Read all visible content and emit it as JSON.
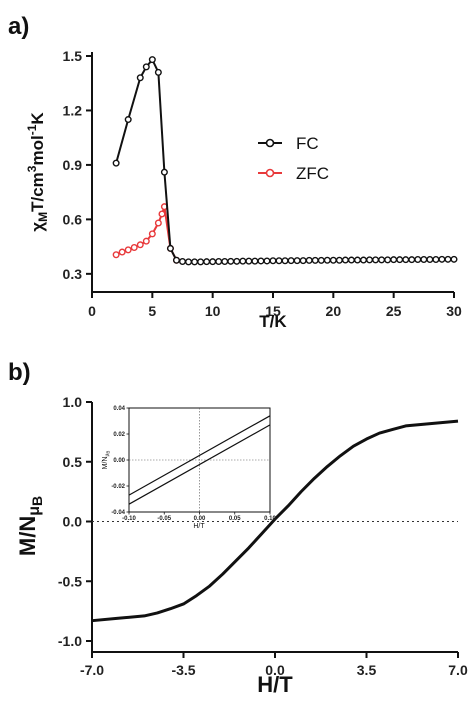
{
  "chart_data": [
    {
      "panel_label": "a)",
      "type": "line",
      "xlabel": "T/K",
      "ylabel_parts": [
        "χ",
        "M",
        "T/cm",
        "3",
        "mol",
        "-1",
        "K"
      ],
      "xlim": [
        0,
        30
      ],
      "ylim": [
        0.2,
        1.5
      ],
      "xticks": [
        0,
        5,
        10,
        15,
        20,
        25,
        30
      ],
      "yticks": [
        0.3,
        0.6,
        0.9,
        1.2,
        1.5
      ],
      "xtick_labels": [
        "0",
        "5",
        "10",
        "15",
        "20",
        "25",
        "30"
      ],
      "ytick_labels": [
        "0.3",
        "0.6",
        "0.9",
        "1.2",
        "1.5"
      ],
      "legend": "right",
      "series": [
        {
          "name": "FC",
          "color": "#111111",
          "marker": "open-circle",
          "x": [
            2,
            3,
            4,
            4.5,
            5,
            5.5,
            6,
            6.5,
            7,
            7.5,
            8,
            8.5,
            9,
            9.5,
            10,
            10.5,
            11,
            11.5,
            12,
            12.5,
            13,
            13.5,
            14,
            14.5,
            15,
            15.5,
            16,
            16.5,
            17,
            17.5,
            18,
            18.5,
            19,
            19.5,
            20,
            20.5,
            21,
            21.5,
            22,
            22.5,
            23,
            23.5,
            24,
            24.5,
            25,
            25.5,
            26,
            26.5,
            27,
            27.5,
            28,
            28.5,
            29,
            29.5,
            30
          ],
          "y": [
            0.91,
            1.15,
            1.38,
            1.44,
            1.48,
            1.41,
            0.86,
            0.44,
            0.375,
            0.368,
            0.366,
            0.366,
            0.366,
            0.367,
            0.367,
            0.368,
            0.368,
            0.369,
            0.369,
            0.37,
            0.37,
            0.37,
            0.371,
            0.371,
            0.372,
            0.372,
            0.372,
            0.373,
            0.373,
            0.373,
            0.374,
            0.374,
            0.374,
            0.375,
            0.375,
            0.375,
            0.376,
            0.376,
            0.376,
            0.376,
            0.377,
            0.377,
            0.377,
            0.377,
            0.378,
            0.378,
            0.378,
            0.378,
            0.379,
            0.379,
            0.379,
            0.379,
            0.38,
            0.38,
            0.38
          ]
        },
        {
          "name": "ZFC",
          "color": "#e8393b",
          "marker": "open-circle",
          "x": [
            2,
            2.5,
            3,
            3.5,
            4,
            4.5,
            5,
            5.5,
            5.8,
            6,
            6.5,
            7
          ],
          "y": [
            0.405,
            0.42,
            0.432,
            0.445,
            0.46,
            0.48,
            0.52,
            0.58,
            0.63,
            0.67,
            0.44,
            0.375
          ]
        }
      ]
    },
    {
      "panel_label": "b)",
      "type": "line",
      "xlabel": "H/T",
      "ylabel_parts": [
        "M/N",
        "μ",
        "B"
      ],
      "xlim": [
        -7,
        7
      ],
      "ylim": [
        -1,
        1
      ],
      "xticks": [
        -7,
        -3.5,
        0,
        3.5,
        7
      ],
      "yticks": [
        -1,
        -0.5,
        0,
        0.5,
        1
      ],
      "xtick_labels": [
        "-7.0",
        "-3.5",
        "0.0",
        "3.5",
        "7.0"
      ],
      "ytick_labels": [
        "-1.0",
        "-0.5",
        "0.0",
        "0.5",
        "1.0"
      ],
      "series": [
        {
          "color": "#111111",
          "x": [
            -7,
            -6,
            -5,
            -4.5,
            -4,
            -3.5,
            -3,
            -2.5,
            -2,
            -1.5,
            -1,
            -0.5,
            0,
            0.5,
            1,
            1.5,
            2,
            2.5,
            3,
            3.5,
            4,
            4.5,
            5,
            6,
            7
          ],
          "y": [
            -0.83,
            -0.81,
            -0.79,
            -0.765,
            -0.73,
            -0.69,
            -0.62,
            -0.54,
            -0.44,
            -0.33,
            -0.22,
            -0.1,
            0.02,
            0.13,
            0.25,
            0.36,
            0.46,
            0.55,
            0.63,
            0.69,
            0.74,
            0.77,
            0.8,
            0.82,
            0.84
          ]
        }
      ],
      "inset": {
        "xlabel": "H/T",
        "ylabel_parts": [
          "M/N",
          "μ",
          "B"
        ],
        "xlim": [
          -0.1,
          0.1
        ],
        "ylim": [
          -0.04,
          0.04
        ],
        "xticks": [
          -0.1,
          -0.05,
          0,
          0.05,
          0.1
        ],
        "yticks": [
          -0.04,
          -0.02,
          0,
          0.02,
          0.04
        ],
        "xtick_labels": [
          "-0.10",
          "-0.05",
          "0.00",
          "0.05",
          "0.10"
        ],
        "ytick_labels": [
          "-0.04",
          "-0.02",
          "0.00",
          "0.02",
          "0.04"
        ],
        "series": [
          {
            "color": "#111111",
            "x": [
              -0.1,
              0.1
            ],
            "y": [
              -0.027,
              0.034
            ]
          },
          {
            "color": "#111111",
            "x": [
              -0.1,
              0.1
            ],
            "y": [
              -0.034,
              0.027
            ]
          }
        ]
      }
    }
  ]
}
